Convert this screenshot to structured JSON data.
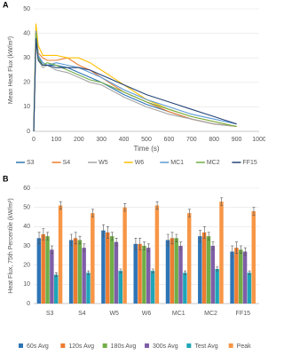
{
  "chart_data": [
    {
      "type": "line",
      "panel_label": "A",
      "xlabel": "Time (s)",
      "ylabel": "Mean Heat Flux (kW/m²)",
      "x": [
        0,
        10,
        20,
        40,
        60,
        100,
        150,
        200,
        250,
        300,
        400,
        500,
        600,
        700,
        800,
        900
      ],
      "series": [
        {
          "name": "S3",
          "color": "#2e75b6",
          "values": [
            0,
            40,
            30,
            28,
            27,
            27,
            26,
            24,
            22,
            20,
            15,
            11,
            8,
            5,
            3,
            2
          ]
        },
        {
          "name": "S4",
          "color": "#ed7d31",
          "values": [
            0,
            42,
            32,
            30,
            29,
            29,
            30,
            27,
            25,
            22,
            16,
            12,
            8,
            5,
            3,
            2
          ]
        },
        {
          "name": "W5",
          "color": "#a5a5a5",
          "values": [
            0,
            38,
            29,
            26,
            27,
            25,
            24,
            22,
            20,
            19,
            14,
            10,
            7,
            5,
            3,
            2
          ]
        },
        {
          "name": "W6",
          "color": "#ffc000",
          "values": [
            0,
            44,
            35,
            31,
            31,
            31,
            30,
            30,
            28,
            25,
            19,
            13,
            9,
            6,
            4,
            2
          ]
        },
        {
          "name": "MC1",
          "color": "#5b9bd5",
          "values": [
            0,
            41,
            31,
            28,
            27,
            28,
            27,
            26,
            24,
            22,
            17,
            13,
            10,
            7,
            5,
            3
          ]
        },
        {
          "name": "MC2",
          "color": "#70ad47",
          "values": [
            0,
            40,
            30,
            27,
            28,
            27,
            25,
            23,
            21,
            20,
            16,
            12,
            9,
            6,
            4,
            2
          ]
        },
        {
          "name": "FF15",
          "color": "#264478",
          "values": [
            0,
            38,
            29,
            27,
            27,
            26,
            26,
            26,
            25,
            23,
            19,
            15,
            12,
            9,
            6,
            3
          ]
        }
      ],
      "xlim": [
        0,
        1000
      ],
      "xticks": [
        0,
        100,
        200,
        300,
        400,
        500,
        600,
        700,
        800,
        900,
        1000
      ],
      "ylim": [
        0,
        50
      ],
      "yticks": [
        0,
        10,
        20,
        30,
        40,
        50
      ],
      "grid": true,
      "legend": "bottom"
    },
    {
      "type": "bar",
      "panel_label": "B",
      "ylabel": "Heat Flux, 75th Percentile (kW/m²)",
      "categories": [
        "S3",
        "S4",
        "W5",
        "W6",
        "MC1",
        "MC2",
        "FF15"
      ],
      "series": [
        {
          "name": "60s Avg",
          "color": "#2e75b6",
          "values": [
            34,
            33,
            38,
            31,
            33,
            35,
            27
          ],
          "errors": [
            3,
            3,
            3,
            3,
            3,
            3,
            3
          ]
        },
        {
          "name": "120s Avg",
          "color": "#ed7d31",
          "values": [
            36,
            34,
            37,
            31,
            34,
            37,
            29
          ],
          "errors": [
            3,
            3,
            3,
            3,
            3,
            3,
            3
          ]
        },
        {
          "name": "180s Avg",
          "color": "#70ad47",
          "values": [
            35,
            33,
            35,
            30,
            34,
            35,
            28
          ],
          "errors": [
            2,
            2,
            2,
            2,
            2,
            2,
            2
          ]
        },
        {
          "name": "300s Avg",
          "color": "#7f5ea8",
          "values": [
            28,
            29,
            32,
            29,
            30,
            30,
            27
          ],
          "errors": [
            2,
            2,
            2,
            2,
            2,
            2,
            2
          ]
        },
        {
          "name": "Test Avg",
          "color": "#1fa5b8",
          "values": [
            15,
            16,
            17,
            17,
            16,
            18,
            16
          ],
          "errors": [
            1,
            1,
            1,
            1,
            1,
            1,
            1
          ]
        },
        {
          "name": "Peak",
          "color": "#f79646",
          "values": [
            51,
            47,
            50,
            51,
            47,
            53,
            48
          ],
          "errors": [
            2,
            2,
            2,
            2,
            2,
            2,
            2
          ]
        }
      ],
      "ylim": [
        0,
        60
      ],
      "yticks": [
        0,
        10,
        20,
        30,
        40,
        50,
        60
      ],
      "grid": true,
      "legend": "bottom"
    }
  ]
}
